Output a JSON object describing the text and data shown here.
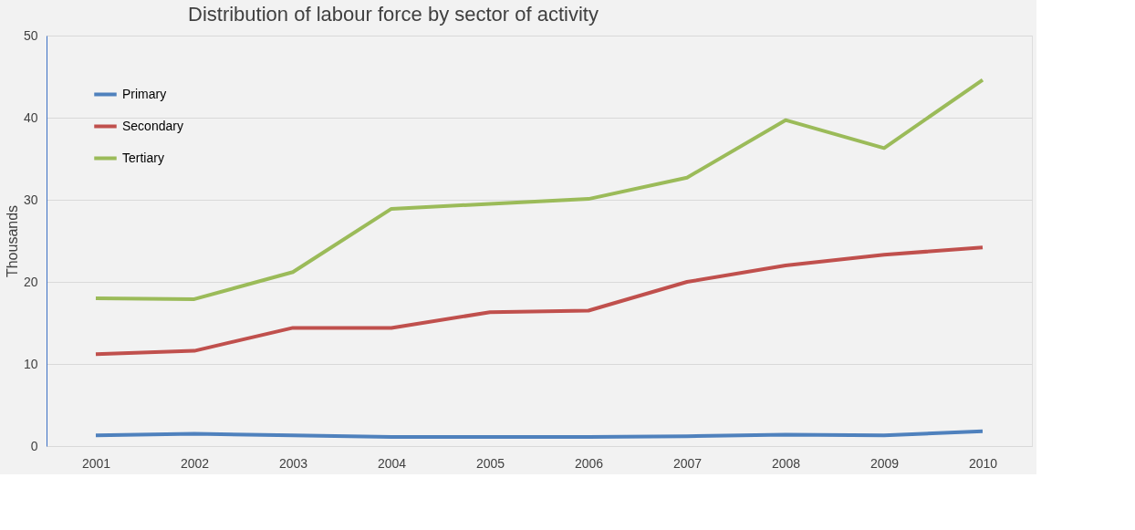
{
  "chart_data": {
    "type": "line",
    "title": "Distribution of labour force by sector of activity",
    "ylabel": "Thousands",
    "categories": [
      "2001",
      "2002",
      "2003",
      "2004",
      "2005",
      "2006",
      "2007",
      "2008",
      "2009",
      "2010"
    ],
    "series": [
      {
        "name": "Primary",
        "color": "#4f81bd",
        "values": [
          1.3,
          1.5,
          1.3,
          1.1,
          1.1,
          1.1,
          1.2,
          1.4,
          1.3,
          1.8
        ]
      },
      {
        "name": "Secondary",
        "color": "#c0504d",
        "values": [
          11.2,
          11.6,
          14.4,
          14.4,
          16.3,
          16.5,
          20.0,
          22.0,
          23.3,
          24.2
        ]
      },
      {
        "name": "Tertiary",
        "color": "#9bbb59",
        "values": [
          18.0,
          17.9,
          21.2,
          28.9,
          29.5,
          30.1,
          32.7,
          39.7,
          36.3,
          44.6
        ]
      }
    ],
    "ylim": [
      0,
      50
    ],
    "yticks": [
      0,
      10,
      20,
      30,
      40,
      50
    ],
    "grid": "y",
    "legend": "top left",
    "marker": "none",
    "line_style": "solid"
  }
}
